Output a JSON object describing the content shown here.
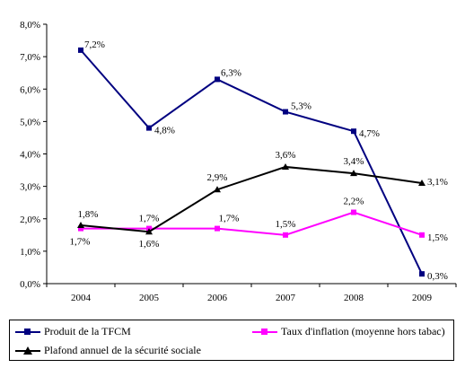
{
  "chart_data": {
    "type": "line",
    "categories": [
      "2004",
      "2005",
      "2006",
      "2007",
      "2008",
      "2009"
    ],
    "ylim": [
      0,
      8
    ],
    "yticks": [
      0,
      1,
      2,
      3,
      4,
      5,
      6,
      7,
      8
    ],
    "ytick_labels": [
      "0,0%",
      "1,0%",
      "2,0%",
      "3,0%",
      "4,0%",
      "5,0%",
      "6,0%",
      "7,0%",
      "8,0%"
    ],
    "grid": false,
    "legend_position": "bottom",
    "series": [
      {
        "name": "Produit de la TFCM",
        "color": "#000080",
        "marker": "square",
        "values": [
          7.2,
          4.8,
          6.3,
          5.3,
          4.7,
          0.3
        ],
        "labels": [
          "7,2%",
          "4,8%",
          "6,3%",
          "5,3%",
          "4,7%",
          "0,3%"
        ]
      },
      {
        "name": "Taux d'inflation (moyenne hors tabac)",
        "color": "#ff00ff",
        "marker": "square",
        "values": [
          1.7,
          1.7,
          1.7,
          1.5,
          2.2,
          1.5
        ],
        "labels": [
          "1,7%",
          "1,7%",
          "1,7%",
          "1,5%",
          "2,2%",
          "1,5%"
        ]
      },
      {
        "name": "Plafond annuel de la sécurité sociale",
        "color": "#000000",
        "marker": "triangle",
        "values": [
          1.8,
          1.6,
          2.9,
          3.6,
          3.4,
          3.1
        ],
        "labels": [
          "1,8%",
          "1,6%",
          "2,9%",
          "3,6%",
          "3,4%",
          "3,1%"
        ]
      }
    ]
  }
}
